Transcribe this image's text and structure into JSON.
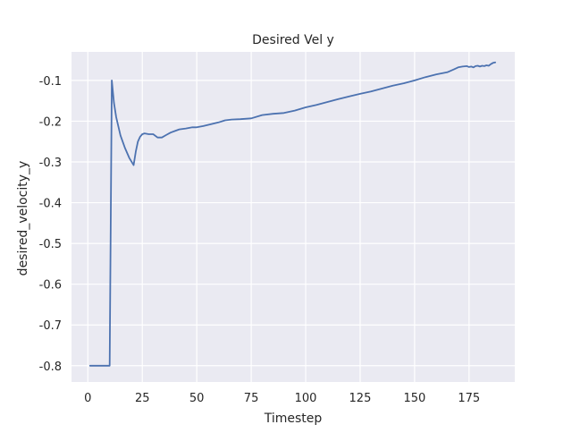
{
  "chart_data": {
    "type": "line",
    "title": "Desired Vel y",
    "xlabel": "Timestep",
    "ylabel": "desired_velocity_y",
    "xlim": [
      -7.5,
      196
    ],
    "ylim": [
      -0.84,
      -0.03
    ],
    "xticks": [
      0,
      25,
      50,
      75,
      100,
      125,
      150,
      175
    ],
    "yticks": [
      -0.8,
      -0.7,
      -0.6,
      -0.5,
      -0.4,
      -0.3,
      -0.2,
      -0.1
    ],
    "grid": true,
    "legend": "none",
    "style": {
      "background": "#eaeaf2",
      "grid_color": "#ffffff",
      "line_color": "#4c72b0"
    },
    "series": [
      {
        "x": [
          1,
          9,
          10,
          11,
          12,
          13,
          15,
          17,
          19,
          21,
          22,
          23,
          24,
          25,
          26,
          28,
          30,
          32,
          34,
          36,
          38,
          40,
          42,
          45,
          48,
          50,
          53,
          56,
          60,
          63,
          66,
          70,
          75,
          80,
          85,
          90,
          95,
          100,
          105,
          110,
          115,
          120,
          125,
          130,
          135,
          140,
          145,
          150,
          155,
          160,
          165,
          168,
          170,
          172,
          174,
          175,
          176,
          177,
          178,
          179,
          180,
          181,
          182,
          183,
          184,
          185,
          186,
          187
        ],
        "y": [
          -0.8,
          -0.8,
          -0.8,
          -0.1,
          -0.155,
          -0.19,
          -0.235,
          -0.265,
          -0.29,
          -0.308,
          -0.275,
          -0.25,
          -0.238,
          -0.232,
          -0.23,
          -0.232,
          -0.232,
          -0.24,
          -0.24,
          -0.234,
          -0.228,
          -0.224,
          -0.22,
          -0.218,
          -0.215,
          -0.215,
          -0.212,
          -0.208,
          -0.203,
          -0.198,
          -0.196,
          -0.195,
          -0.193,
          -0.185,
          -0.182,
          -0.18,
          -0.174,
          -0.166,
          -0.16,
          -0.153,
          -0.146,
          -0.139,
          -0.133,
          -0.127,
          -0.12,
          -0.113,
          -0.107,
          -0.1,
          -0.092,
          -0.085,
          -0.08,
          -0.073,
          -0.068,
          -0.066,
          -0.065,
          -0.067,
          -0.066,
          -0.068,
          -0.065,
          -0.064,
          -0.066,
          -0.064,
          -0.065,
          -0.063,
          -0.064,
          -0.06,
          -0.057,
          -0.056
        ]
      }
    ]
  }
}
